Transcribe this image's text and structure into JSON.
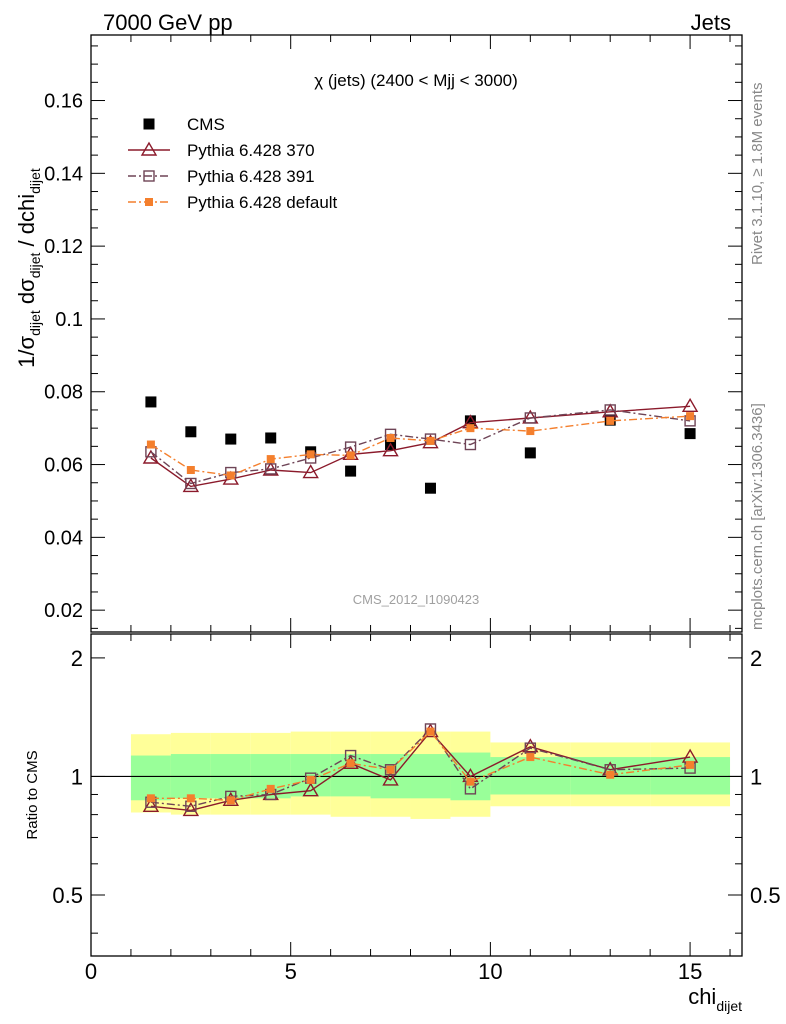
{
  "header": {
    "left": "7000 GeV pp",
    "right": "Jets"
  },
  "side_labels": {
    "rivet": "Rivet 3.1.10, ≥ 1.8M events",
    "mcplots": "mcplots.cern.ch [arXiv:1306.3436]"
  },
  "watermark": "CMS_2012_I1090423",
  "colors": {
    "cms": "#000000",
    "p370": "#8b1a2b",
    "p391": "#6e4456",
    "pdef": "#f47f2d",
    "band_inner": "#99ff99",
    "band_outer": "#ffff99"
  },
  "chart_data": [
    {
      "type": "line",
      "title": "χ (jets) (2400 < Mjj < 3000)",
      "ylabel": "1/σdijet dσdijet / dchidijet",
      "xlim": [
        0,
        16.3
      ],
      "ylim": [
        0.014,
        0.178
      ],
      "yticks": [
        "0.02",
        "0.04",
        "0.06",
        "0.08",
        "0.1",
        "0.12",
        "0.14",
        "0.16"
      ],
      "yticks_values": [
        0.02,
        0.04,
        0.06,
        0.08,
        0.1,
        0.12,
        0.14,
        0.16
      ],
      "legend_placement": "top-left",
      "x": [
        1.5,
        2.5,
        3.5,
        4.5,
        5.5,
        6.5,
        7.5,
        8.5,
        9.5,
        11,
        13,
        15
      ],
      "series": [
        {
          "name": "CMS",
          "marker": "filled-square",
          "values": [
            0.0772,
            0.069,
            0.067,
            0.0673,
            0.0635,
            0.0582,
            0.0655,
            0.0535,
            0.072,
            0.0632,
            0.0722,
            0.0685
          ]
        },
        {
          "name": "Pythia 6.428 370",
          "marker": "open-triangle",
          "line": "solid",
          "values": [
            0.0618,
            0.054,
            0.056,
            0.0585,
            0.0578,
            0.0628,
            0.0638,
            0.066,
            0.0715,
            0.0728,
            0.0745,
            0.076
          ]
        },
        {
          "name": "Pythia 6.428 391",
          "marker": "open-square",
          "line": "dashdot",
          "values": [
            0.0635,
            0.0548,
            0.0578,
            0.0588,
            0.0618,
            0.0648,
            0.0683,
            0.067,
            0.0655,
            0.0728,
            0.075,
            0.072
          ]
        },
        {
          "name": "Pythia 6.428 default",
          "marker": "filled-square-small",
          "line": "dashdot",
          "values": [
            0.0655,
            0.0585,
            0.057,
            0.0615,
            0.0628,
            0.0625,
            0.0673,
            0.0665,
            0.07,
            0.0692,
            0.072,
            0.0733
          ]
        }
      ]
    },
    {
      "type": "line",
      "title": "",
      "ylabel": "Ratio to CMS",
      "xlabel": "chidijet",
      "xlim": [
        0,
        16.3
      ],
      "ylim": [
        0.35,
        2.3
      ],
      "yscale": "log",
      "yticks": [
        "0.5",
        "1",
        "2"
      ],
      "yticks_values": [
        0.5,
        1,
        2
      ],
      "xticks": [
        "0",
        "5",
        "10",
        "15"
      ],
      "xticks_values": [
        0,
        5,
        10,
        15
      ],
      "reference_line": 1,
      "bands": {
        "edges": [
          1,
          2,
          3,
          4,
          5,
          6,
          7,
          8,
          9,
          10,
          12,
          14,
          16
        ],
        "inner_low": [
          0.87,
          0.88,
          0.88,
          0.88,
          0.89,
          0.89,
          0.88,
          0.88,
          0.87,
          0.9,
          0.9,
          0.9
        ],
        "inner_high": [
          1.13,
          1.14,
          1.14,
          1.14,
          1.14,
          1.14,
          1.14,
          1.14,
          1.15,
          1.12,
          1.12,
          1.12
        ],
        "outer_low": [
          0.81,
          0.8,
          0.8,
          0.8,
          0.8,
          0.79,
          0.79,
          0.78,
          0.79,
          0.84,
          0.84,
          0.84
        ],
        "outer_high": [
          1.28,
          1.29,
          1.29,
          1.29,
          1.3,
          1.3,
          1.3,
          1.3,
          1.3,
          1.22,
          1.22,
          1.22
        ]
      },
      "x": [
        1.5,
        2.5,
        3.5,
        4.5,
        5.5,
        6.5,
        7.5,
        8.5,
        9.5,
        11,
        13,
        15
      ],
      "series": [
        {
          "name": "Pythia 6.428 370",
          "marker": "open-triangle",
          "line": "solid",
          "values": [
            0.84,
            0.82,
            0.87,
            0.9,
            0.92,
            1.08,
            0.98,
            1.3,
            1.0,
            1.19,
            1.04,
            1.12
          ]
        },
        {
          "name": "Pythia 6.428 391",
          "marker": "open-square",
          "line": "dashdot",
          "values": [
            0.86,
            0.84,
            0.89,
            0.9,
            0.99,
            1.13,
            1.04,
            1.32,
            0.93,
            1.18,
            1.04,
            1.05
          ]
        },
        {
          "name": "Pythia 6.428 default",
          "marker": "filled-square-small",
          "line": "dashdot",
          "values": [
            0.88,
            0.88,
            0.87,
            0.93,
            0.98,
            1.08,
            1.04,
            1.3,
            0.97,
            1.12,
            1.01,
            1.07
          ]
        }
      ]
    }
  ]
}
